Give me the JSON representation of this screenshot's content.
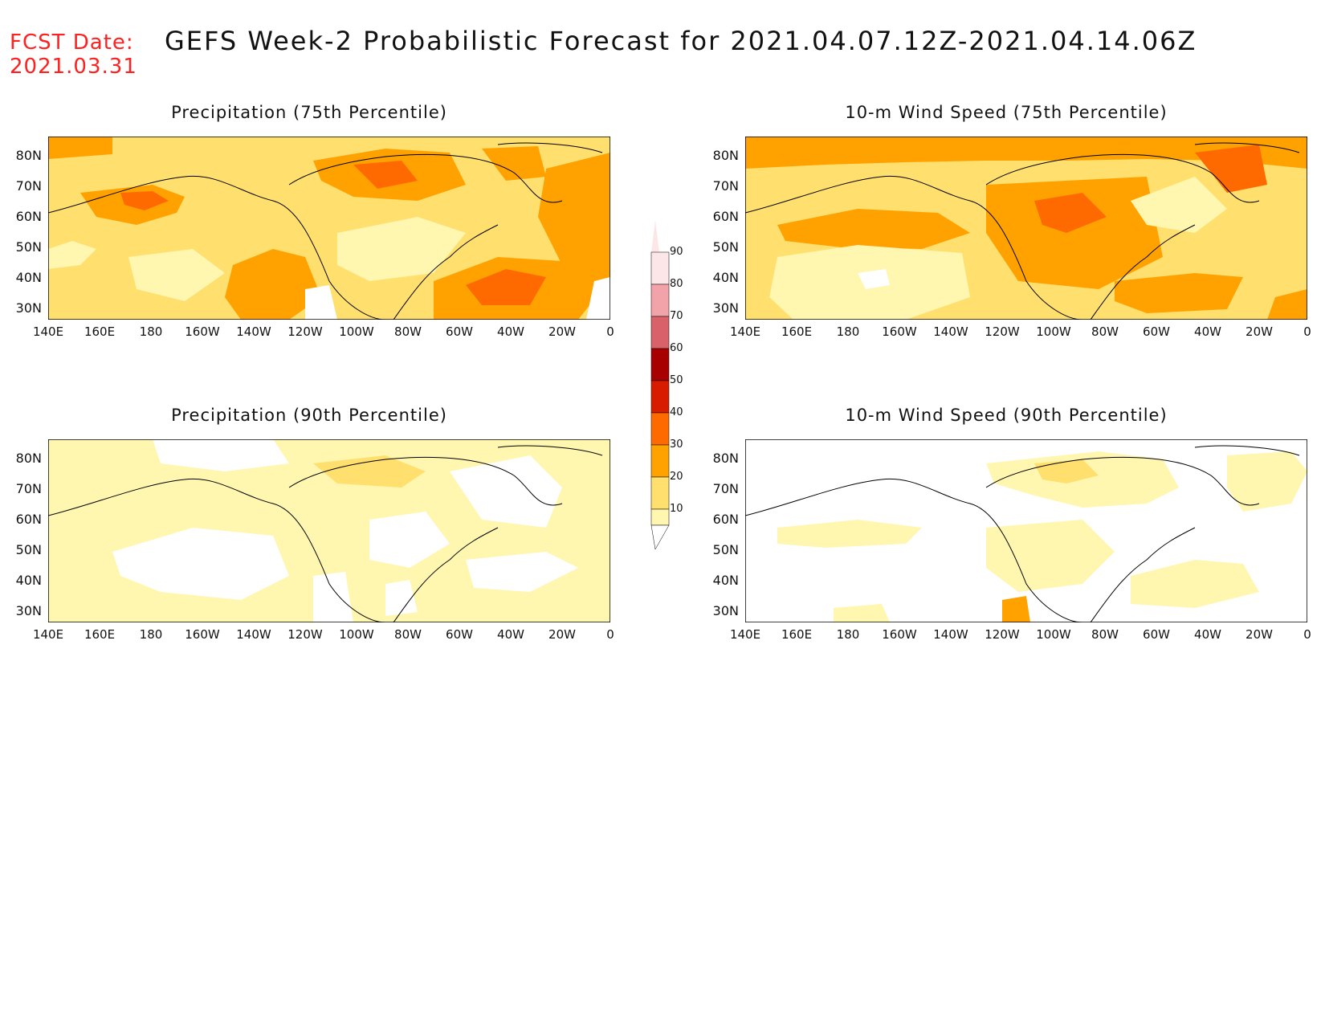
{
  "header": {
    "fcst_label": "FCST Date:",
    "fcst_date": "2021.03.31",
    "title": "GEFS Week-2 Probabilistic Forecast for 2021.04.07.12Z-2021.04.14.06Z"
  },
  "panels": [
    {
      "title": "Precipitation (75th Percentile)",
      "variant": "precip75"
    },
    {
      "title": "10-m Wind Speed (75th Percentile)",
      "variant": "wind75"
    },
    {
      "title": "Precipitation (90th Percentile)",
      "variant": "precip90"
    },
    {
      "title": "10-m Wind Speed (90th Percentile)",
      "variant": "wind90"
    }
  ],
  "axes": {
    "lat_labels": [
      "80N",
      "70N",
      "60N",
      "50N",
      "40N",
      "30N"
    ],
    "lon_labels": [
      "140E",
      "160E",
      "180",
      "160W",
      "140W",
      "120W",
      "100W",
      "80W",
      "60W",
      "40W",
      "20W",
      "0"
    ]
  },
  "legend": {
    "levels": [
      "90",
      "80",
      "70",
      "60",
      "50",
      "40",
      "30",
      "20",
      "10"
    ],
    "colors": {
      "c90": "#fde6e8",
      "c80": "#f2a3aa",
      "c70": "#d9626a",
      "c60": "#a80000",
      "c50": "#d81c00",
      "c40": "#ff6a00",
      "c30": "#ffa200",
      "c20": "#ffdf6e",
      "c10": "#fff6b0"
    }
  }
}
